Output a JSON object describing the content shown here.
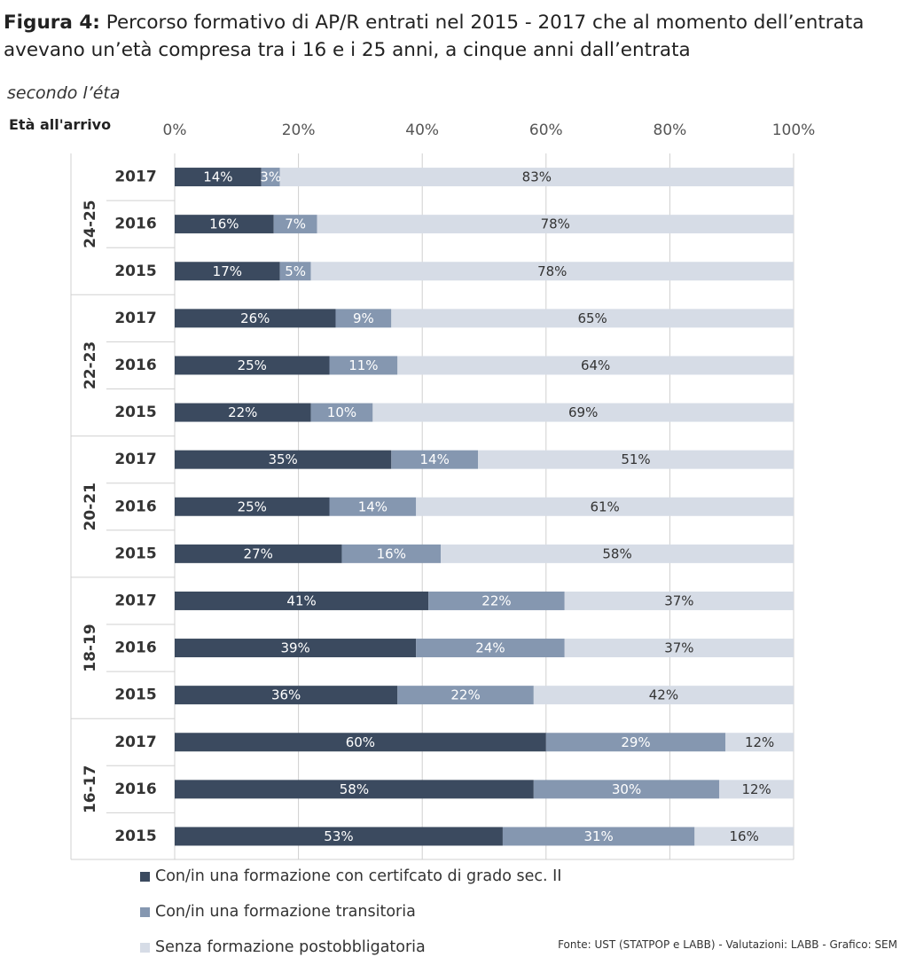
{
  "title": {
    "prefix": "Figura 4:",
    "text": " Percorso formativo di AP/R entrati nel 2015 - 2017 che al momento dell’entrata avevano un’età compresa tra i 16 e i 25 anni, a cinque anni dall’entrata"
  },
  "subtitle": "secondo l’éta",
  "source": "Fonte: UST (STATPOP e LABB) - Valutazioni: LABB - Grafico: SEM",
  "chart_data": {
    "type": "bar",
    "orientation": "horizontal",
    "stacked": true,
    "percent": true,
    "title": "Percorso formativo di AP/R entrati nel 2015 - 2017 che al momento dell’entrata avevano un’età compresa tra i 16 e i 25 anni, a cinque anni dall’entrata",
    "ylabel": "Età all'arrivo",
    "xlim": [
      0,
      100
    ],
    "xticks": [
      "0%",
      "20%",
      "40%",
      "60%",
      "80%",
      "100%"
    ],
    "grid": true,
    "legend_position": "bottom",
    "groups": [
      {
        "label": "24-25",
        "rows": [
          {
            "year": "2017",
            "values": [
              14,
              3,
              83
            ]
          },
          {
            "year": "2016",
            "values": [
              16,
              7,
              78
            ]
          },
          {
            "year": "2015",
            "values": [
              17,
              5,
              78
            ]
          }
        ]
      },
      {
        "label": "22-23",
        "rows": [
          {
            "year": "2017",
            "values": [
              26,
              9,
              65
            ]
          },
          {
            "year": "2016",
            "values": [
              25,
              11,
              64
            ]
          },
          {
            "year": "2015",
            "values": [
              22,
              10,
              69
            ]
          }
        ]
      },
      {
        "label": "20-21",
        "rows": [
          {
            "year": "2017",
            "values": [
              35,
              14,
              51
            ]
          },
          {
            "year": "2016",
            "values": [
              25,
              14,
              61
            ]
          },
          {
            "year": "2015",
            "values": [
              27,
              16,
              58
            ]
          }
        ]
      },
      {
        "label": "18-19",
        "rows": [
          {
            "year": "2017",
            "values": [
              41,
              22,
              37
            ]
          },
          {
            "year": "2016",
            "values": [
              39,
              24,
              37
            ]
          },
          {
            "year": "2015",
            "values": [
              36,
              22,
              42
            ]
          }
        ]
      },
      {
        "label": "16-17",
        "rows": [
          {
            "year": "2017",
            "values": [
              60,
              29,
              12
            ]
          },
          {
            "year": "2016",
            "values": [
              58,
              30,
              12
            ]
          },
          {
            "year": "2015",
            "values": [
              53,
              31,
              16
            ]
          }
        ]
      }
    ],
    "series": [
      {
        "name": "Con/in una formazione con certifcato di grado sec. II",
        "color": "#3b4a5f",
        "label_color": "#ffffff"
      },
      {
        "name": "Con/in una formazione transitoria",
        "color": "#8597b0",
        "label_color": "#ffffff"
      },
      {
        "name": "Senza formazione postobbligatoria",
        "color": "#d6dce6",
        "label_color": "#333333"
      }
    ]
  }
}
